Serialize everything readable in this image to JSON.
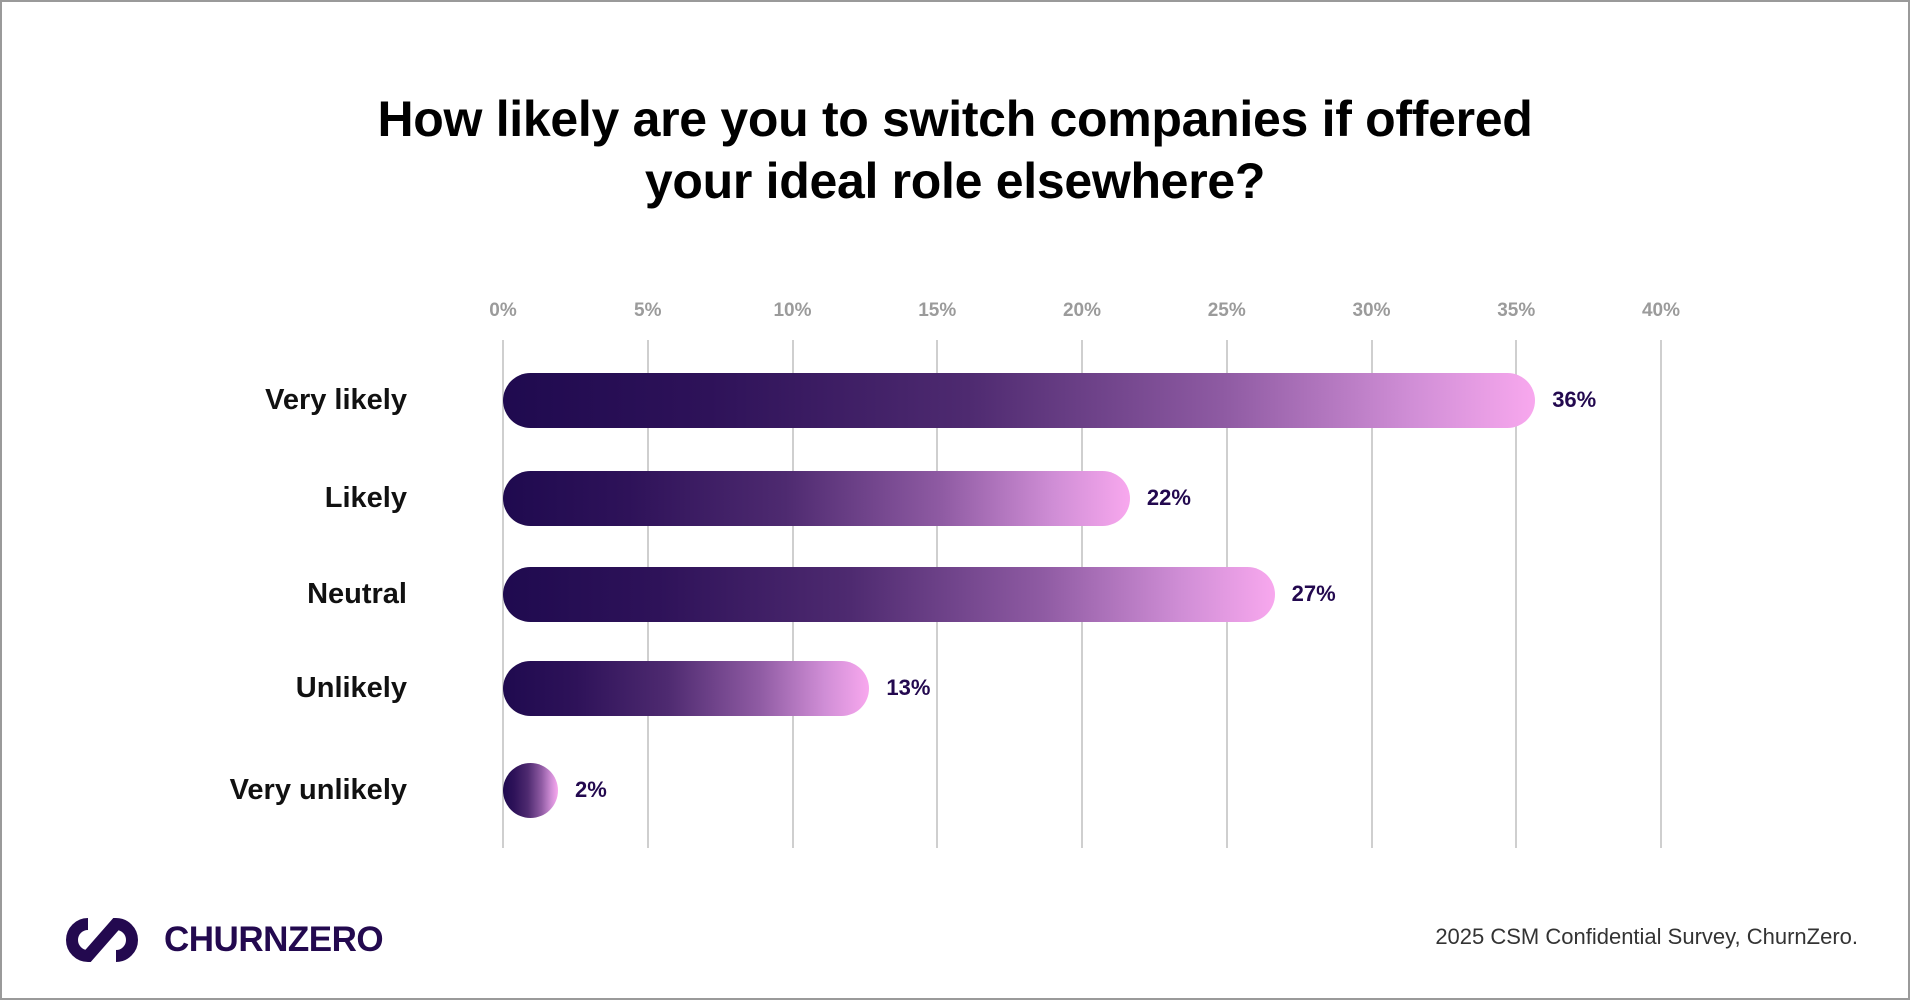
{
  "title_lines": [
    "How likely are you to switch companies if offered",
    "your ideal role elsewhere?"
  ],
  "axis": {
    "ticks": [
      "0%",
      "5%",
      "10%",
      "15%",
      "20%",
      "25%",
      "30%",
      "35%",
      "40%"
    ]
  },
  "bars": [
    {
      "label": "Very likely",
      "value_label": "36%"
    },
    {
      "label": "Likely",
      "value_label": "22%"
    },
    {
      "label": "Neutral",
      "value_label": "27%"
    },
    {
      "label": "Unlikely",
      "value_label": "13%"
    },
    {
      "label": "Very unlikely",
      "value_label": "2%"
    }
  ],
  "footer": {
    "logo_text": "CHURNZERO",
    "source": "2025 CSM Confidential Survey, ChurnZero."
  },
  "colors": {
    "brand_dark": "#23094f",
    "bar_gradient_start": "#1f0a4f",
    "bar_gradient_end": "#f8a8ee",
    "gridline": "#cfcfcf",
    "tick_text": "#9b9b9b"
  },
  "chart_data": {
    "type": "bar",
    "orientation": "horizontal",
    "title": "How likely are you to switch companies if offered your ideal role elsewhere?",
    "categories": [
      "Very likely",
      "Likely",
      "Neutral",
      "Unlikely",
      "Very unlikely"
    ],
    "values": [
      36,
      22,
      27,
      13,
      2
    ],
    "value_labels": [
      "36%",
      "22%",
      "27%",
      "13%",
      "2%"
    ],
    "xlabel": "",
    "ylabel": "",
    "xlim": [
      0,
      40
    ],
    "x_ticks": [
      "0%",
      "5%",
      "10%",
      "15%",
      "20%",
      "25%",
      "30%",
      "35%",
      "40%"
    ],
    "x_axis_position": "top",
    "grid": "vertical",
    "legend": "none",
    "source": "2025 CSM Confidential Survey, ChurnZero."
  }
}
